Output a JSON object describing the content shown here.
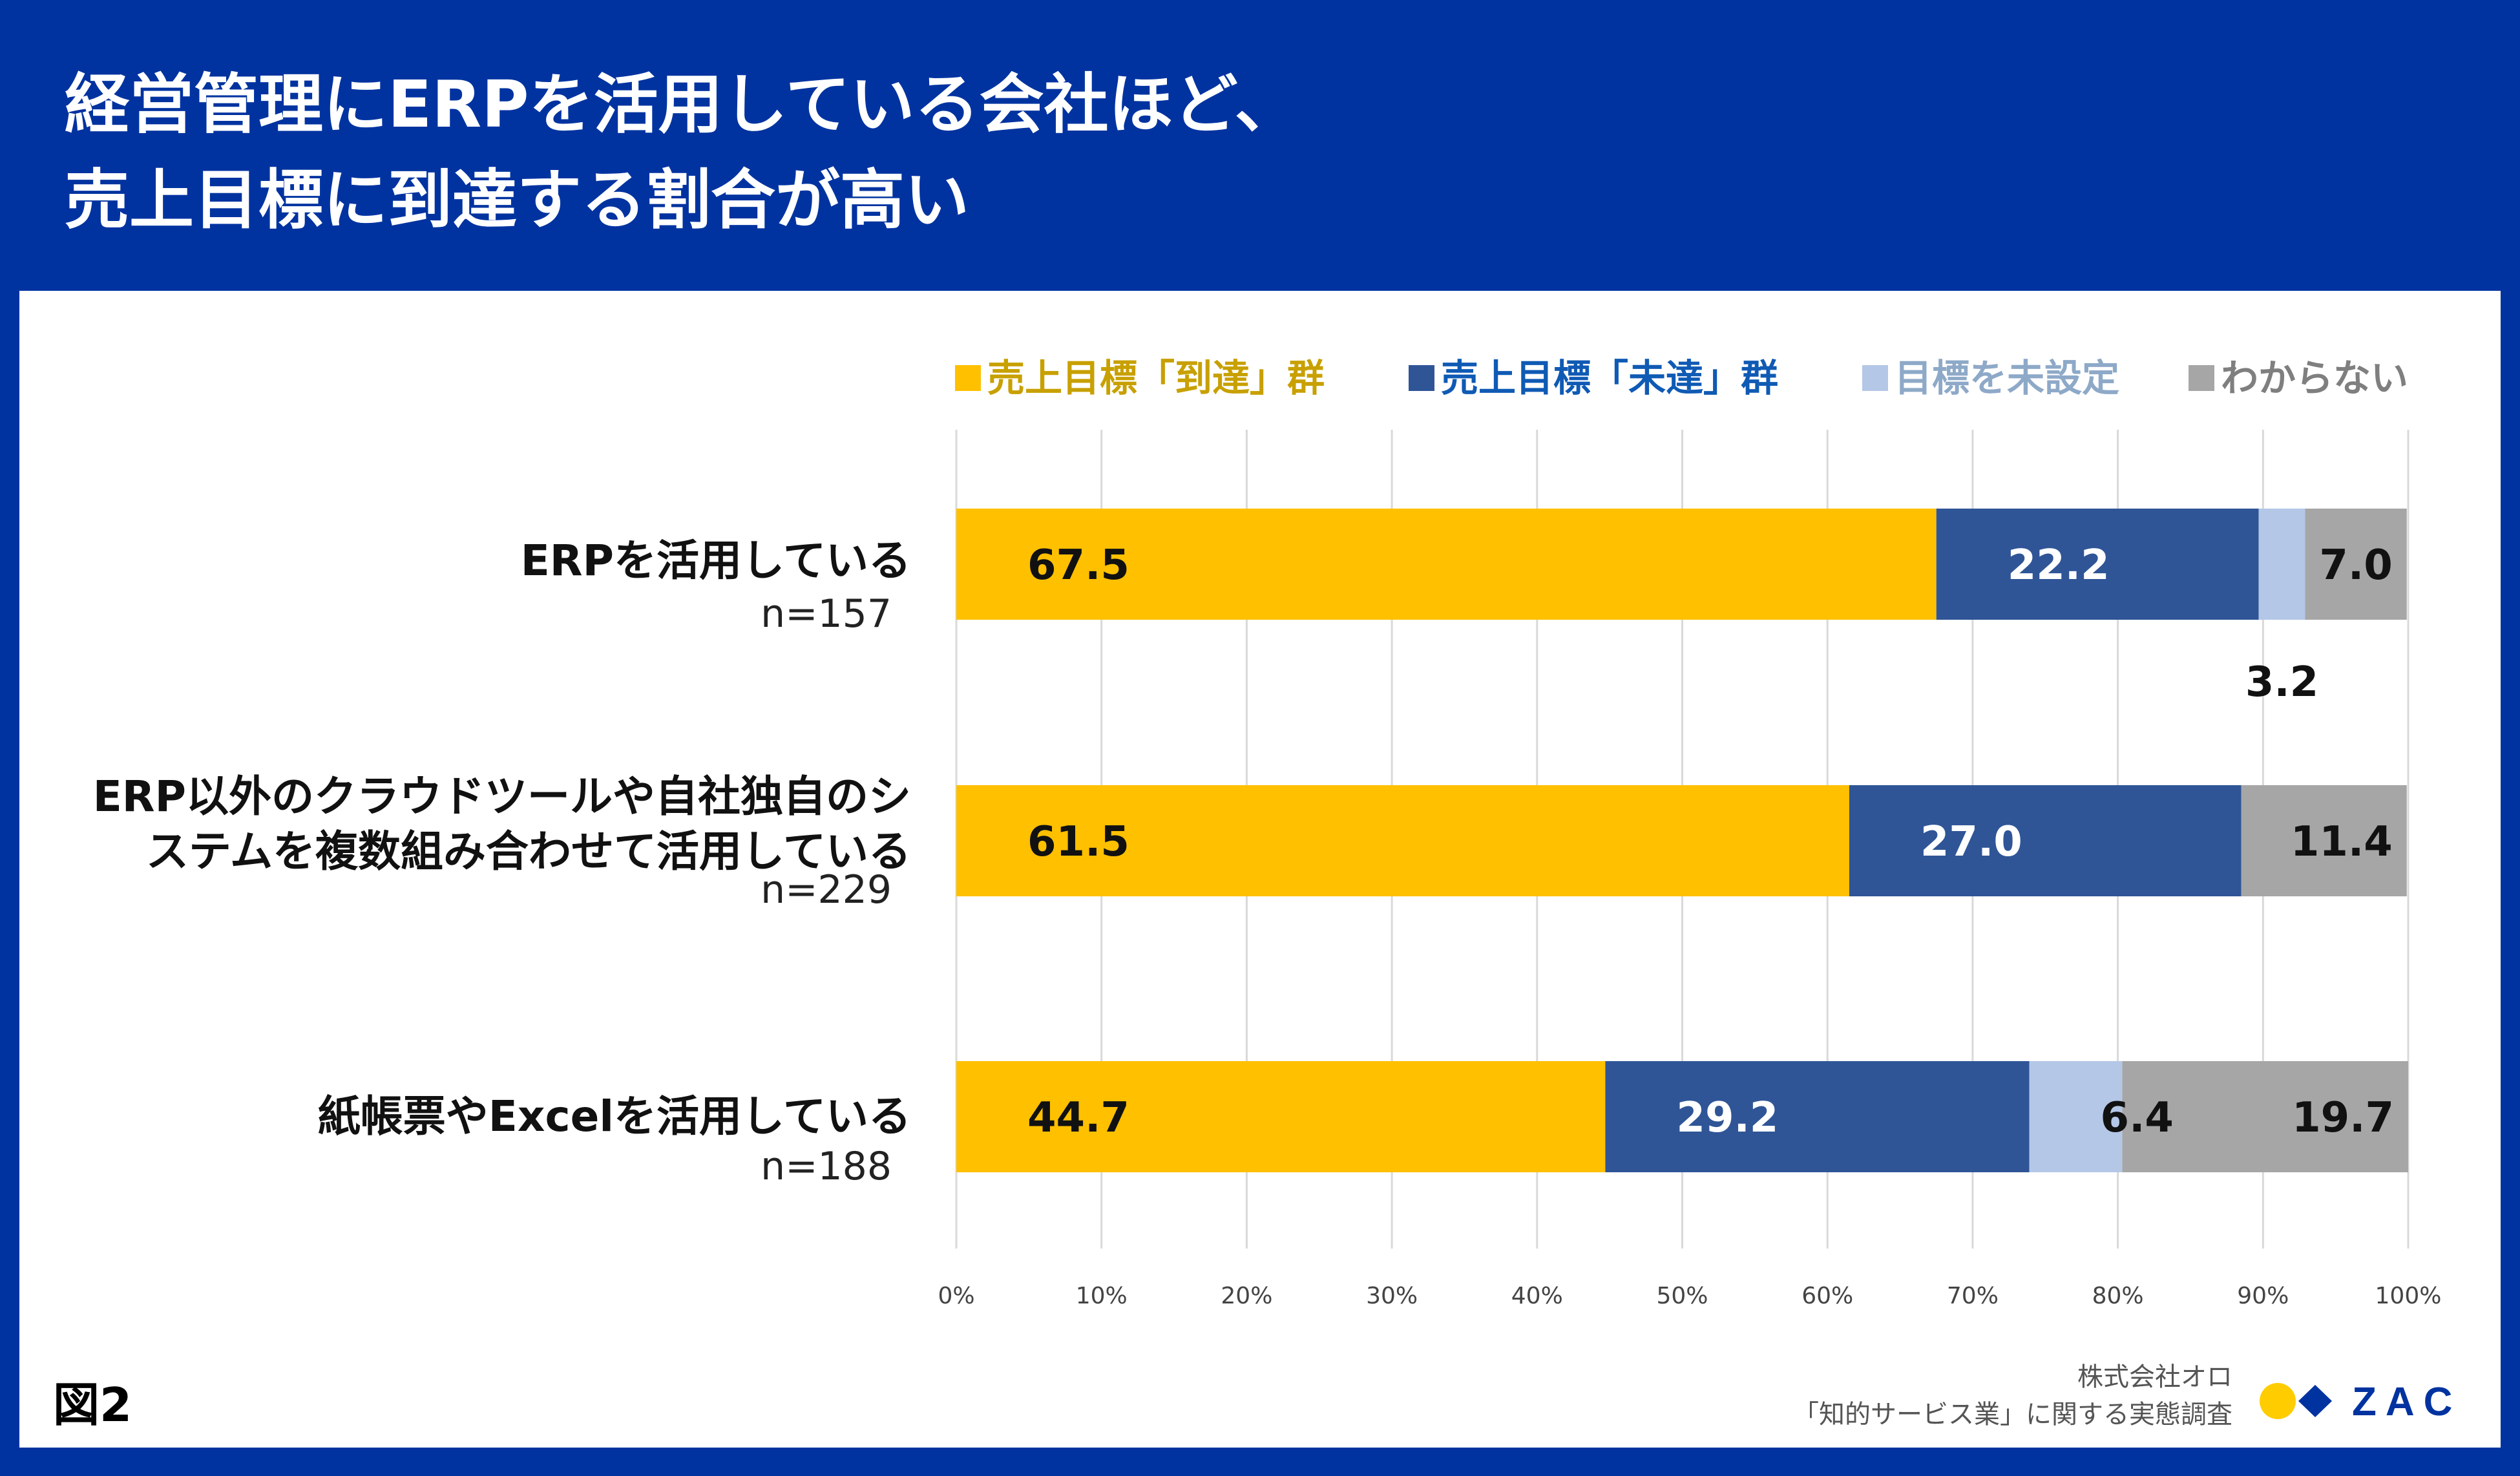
{
  "title": {
    "line1": "経営管理にERPを活用している会社ほど、",
    "line2": "売上目標に到達する割合が高い"
  },
  "figure_label": "図2",
  "source": {
    "line1": "株式会社オロ",
    "line2": "「知的サービス業」に関する実態調査"
  },
  "logo": {
    "text": "ZAC",
    "dot1_color": "#ffcc00",
    "dot2_color": "#0033a0"
  },
  "chart_data": {
    "type": "bar",
    "orientation": "horizontal",
    "stacked": true,
    "xlim": [
      0,
      100
    ],
    "x_ticks": [
      "0%",
      "10%",
      "20%",
      "30%",
      "40%",
      "50%",
      "60%",
      "70%",
      "80%",
      "90%",
      "100%"
    ],
    "grid": true,
    "legend_position": "top-right",
    "categories": [
      {
        "lines": [
          "ERPを活用している"
        ],
        "n": "n=157"
      },
      {
        "lines": [
          "ERP以外のクラウドツールや自社独自のシ",
          "ステムを複数組み合わせて活用している"
        ],
        "n": "n=229"
      },
      {
        "lines": [
          "紙帳票やExcelを活用している"
        ],
        "n": "n=188"
      }
    ],
    "series": [
      {
        "name": "売上目標「到達」群",
        "color": "#ffc000",
        "legend_color": "#c8a000",
        "label_color": "#111111",
        "values": [
          67.5,
          61.5,
          44.7
        ],
        "labels": [
          "67.5",
          "61.5",
          "44.7"
        ]
      },
      {
        "name": "売上目標「未達」群",
        "color": "#2f5597",
        "legend_color": "#0f5ab4",
        "label_color": "#ffffff",
        "values": [
          22.2,
          27.0,
          29.2
        ],
        "labels": [
          "22.2",
          "27.0",
          "29.2"
        ]
      },
      {
        "name": "目標を未設定",
        "color": "#b4c7e7",
        "legend_color": "#8ea9c8",
        "label_color": "#111111",
        "values": [
          3.2,
          0,
          6.4
        ],
        "labels": [
          "3.2",
          "",
          "6.4"
        ]
      },
      {
        "name": "わからない",
        "color": "#a6a6a6",
        "legend_color": "#7f7f7f",
        "label_color": "#111111",
        "values": [
          7.0,
          11.4,
          19.7
        ],
        "labels": [
          "7.0",
          "11.4",
          "19.7"
        ]
      }
    ]
  }
}
